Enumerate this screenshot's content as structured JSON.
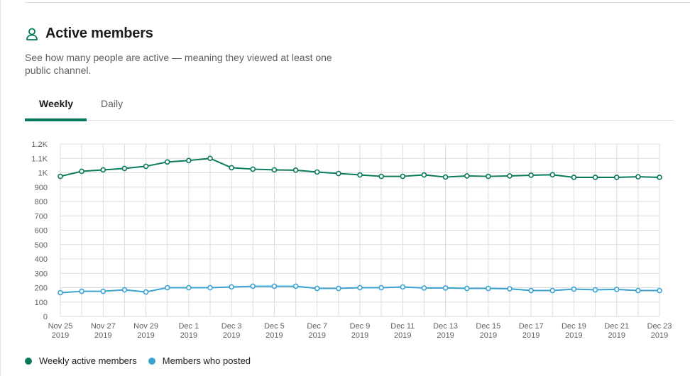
{
  "header": {
    "title": "Active members",
    "icon": "person-icon",
    "description": "See how many people are active — meaning they viewed at least one public channel."
  },
  "tabs": [
    {
      "label": "Weekly",
      "active": true
    },
    {
      "label": "Daily",
      "active": false
    }
  ],
  "colors": {
    "accent": "#007a5a",
    "weekly_series": "#0b7a5d",
    "posted_series": "#3aa3d1",
    "grid": "#dddddd",
    "axis_text": "#616061"
  },
  "chart_data": {
    "type": "line",
    "x": [
      "Nov 25 2019",
      "Nov 26 2019",
      "Nov 27 2019",
      "Nov 28 2019",
      "Nov 29 2019",
      "Nov 30 2019",
      "Dec 1 2019",
      "Dec 2 2019",
      "Dec 3 2019",
      "Dec 4 2019",
      "Dec 5 2019",
      "Dec 6 2019",
      "Dec 7 2019",
      "Dec 8 2019",
      "Dec 9 2019",
      "Dec 10 2019",
      "Dec 11 2019",
      "Dec 12 2019",
      "Dec 13 2019",
      "Dec 14 2019",
      "Dec 15 2019",
      "Dec 16 2019",
      "Dec 17 2019",
      "Dec 18 2019",
      "Dec 19 2019",
      "Dec 20 2019",
      "Dec 21 2019",
      "Dec 22 2019",
      "Dec 23 2019"
    ],
    "x_tick_labels": [
      {
        "line1": "Nov 25",
        "line2": "2019"
      },
      {
        "line1": "Nov 27",
        "line2": "2019"
      },
      {
        "line1": "Nov 29",
        "line2": "2019"
      },
      {
        "line1": "Dec 1",
        "line2": "2019"
      },
      {
        "line1": "Dec 3",
        "line2": "2019"
      },
      {
        "line1": "Dec 5",
        "line2": "2019"
      },
      {
        "line1": "Dec 7",
        "line2": "2019"
      },
      {
        "line1": "Dec 9",
        "line2": "2019"
      },
      {
        "line1": "Dec 11",
        "line2": "2019"
      },
      {
        "line1": "Dec 13",
        "line2": "2019"
      },
      {
        "line1": "Dec 15",
        "line2": "2019"
      },
      {
        "line1": "Dec 17",
        "line2": "2019"
      },
      {
        "line1": "Dec 19",
        "line2": "2019"
      },
      {
        "line1": "Dec 21",
        "line2": "2019"
      },
      {
        "line1": "Dec 23",
        "line2": "2019"
      }
    ],
    "y_ticks": [
      0,
      100,
      200,
      300,
      400,
      500,
      600,
      700,
      800,
      900,
      1000,
      1100,
      1200
    ],
    "y_tick_labels": [
      "0",
      "100",
      "200",
      "300",
      "400",
      "500",
      "600",
      "700",
      "800",
      "900",
      "1K",
      "1.1K",
      "1.2K"
    ],
    "ylim": [
      0,
      1200
    ],
    "grid": true,
    "legend_position": "bottom-left",
    "series": [
      {
        "name": "Weekly active members",
        "values": [
          975,
          1010,
          1020,
          1030,
          1045,
          1075,
          1085,
          1100,
          1035,
          1025,
          1020,
          1018,
          1005,
          995,
          985,
          975,
          975,
          985,
          970,
          978,
          975,
          978,
          983,
          986,
          968,
          968,
          968,
          972,
          968
        ]
      },
      {
        "name": "Members who posted",
        "values": [
          165,
          175,
          175,
          185,
          170,
          200,
          200,
          200,
          205,
          210,
          210,
          210,
          195,
          195,
          200,
          200,
          205,
          198,
          198,
          195,
          195,
          192,
          180,
          180,
          190,
          185,
          188,
          180,
          180
        ]
      }
    ]
  }
}
